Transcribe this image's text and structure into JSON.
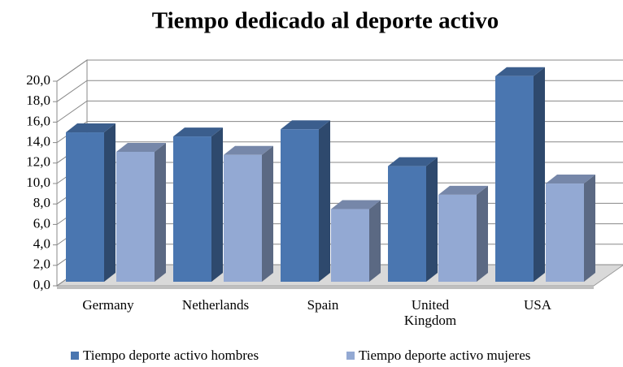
{
  "chart_data": {
    "type": "bar3d",
    "title": "Tiempo dedicado al deporte activo",
    "categories": [
      "Germany",
      "Netherlands",
      "Spain",
      "United Kingdom",
      "USA"
    ],
    "series": [
      {
        "name": "Tiempo deporte activo hombres",
        "color": "#4a76b0",
        "values": [
          14.6,
          14.2,
          14.9,
          11.3,
          20.1
        ]
      },
      {
        "name": "Tiempo deporte activo mujeres",
        "color": "#93a9d3",
        "values": [
          12.7,
          12.4,
          7.1,
          8.5,
          9.6
        ]
      }
    ],
    "ylim": [
      0,
      20
    ],
    "yticks": [
      {
        "value": 0,
        "label": "0,0"
      },
      {
        "value": 2,
        "label": "2,0"
      },
      {
        "value": 4,
        "label": "4,0"
      },
      {
        "value": 6,
        "label": "6,0"
      },
      {
        "value": 8,
        "label": "8,0"
      },
      {
        "value": 10,
        "label": "10,0"
      },
      {
        "value": 12,
        "label": "12,0"
      },
      {
        "value": 14,
        "label": "14,0"
      },
      {
        "value": 16,
        "label": "16,0"
      },
      {
        "value": 18,
        "label": "18,0"
      },
      {
        "value": 20,
        "label": "20,0"
      }
    ],
    "grid": true,
    "legend": "bottom"
  }
}
